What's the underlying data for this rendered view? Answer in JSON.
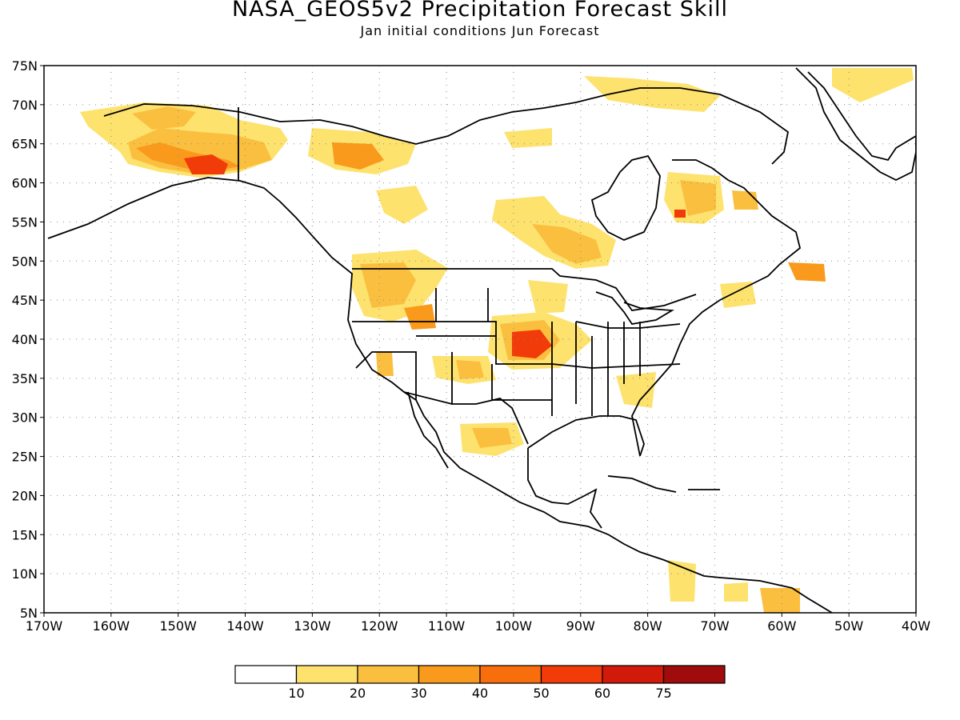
{
  "title": "NASA_GEOS5v2 Precipitation Forecast Skill",
  "subtitle": "Jan initial conditions  Jun Forecast",
  "map": {
    "lon_range": [
      -170,
      -40
    ],
    "lat_range": [
      5,
      75
    ],
    "lon_ticks": [
      "170W",
      "160W",
      "150W",
      "140W",
      "130W",
      "120W",
      "110W",
      "100W",
      "90W",
      "80W",
      "70W",
      "60W",
      "50W",
      "40W"
    ],
    "lat_ticks": [
      "75N",
      "70N",
      "65N",
      "60N",
      "55N",
      "50N",
      "45N",
      "40N",
      "35N",
      "30N",
      "25N",
      "20N",
      "15N",
      "10N",
      "5N"
    ],
    "grid": "dotted"
  },
  "colorbar": {
    "labels": [
      "10",
      "20",
      "30",
      "40",
      "50",
      "60",
      "75"
    ],
    "colors": [
      "#ffffff",
      "#fde26e",
      "#fbbf3f",
      "#f99a1c",
      "#f86d0c",
      "#f13c0a",
      "#d21a0a",
      "#a00c0c"
    ]
  },
  "colors": {
    "c1": "#fde26e",
    "c2": "#fbbf3f",
    "c3": "#f99a1c",
    "c4": "#f86d0c",
    "c5": "#f13c0a"
  }
}
